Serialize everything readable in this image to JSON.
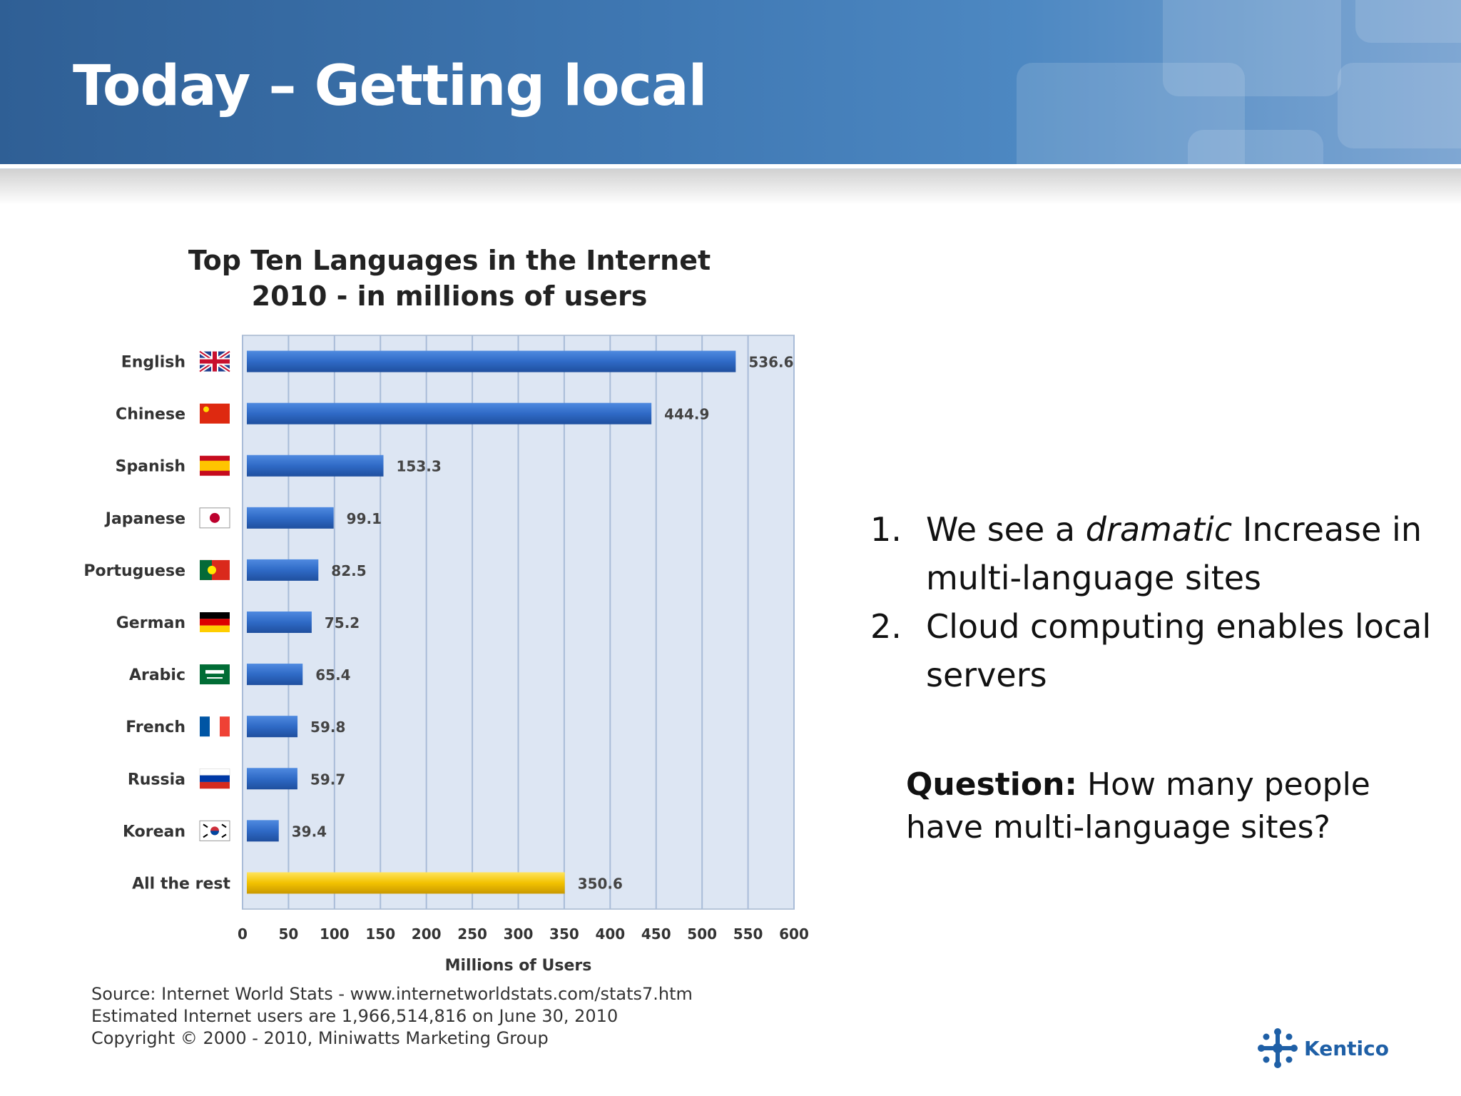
{
  "slide": {
    "title": "Today – Getting local"
  },
  "chart_data": {
    "type": "bar",
    "orientation": "horizontal",
    "title": "Top Ten Languages in the Internet",
    "subtitle": "2010 - in millions of users",
    "xlabel": "Millions of Users",
    "ylabel": "",
    "xlim": [
      0,
      600
    ],
    "xticks": [
      0,
      50,
      100,
      150,
      200,
      250,
      300,
      350,
      400,
      450,
      500,
      550,
      600
    ],
    "grid": true,
    "categories": [
      "English",
      "Chinese",
      "Spanish",
      "Japanese",
      "Portuguese",
      "German",
      "Arabic",
      "French",
      "Russia",
      "Korean",
      "All the rest"
    ],
    "values": [
      536.6,
      444.9,
      153.3,
      99.1,
      82.5,
      75.2,
      65.4,
      59.8,
      59.7,
      39.4,
      350.6
    ],
    "value_labels": [
      "536.6",
      "444.9",
      "153.3",
      "99.1",
      "82.5",
      "75.2",
      "65.4",
      "59.8",
      "59.7",
      "39.4",
      "350.6"
    ],
    "flags": [
      "uk-flag-icon",
      "china-flag-icon",
      "spain-flag-icon",
      "japan-flag-icon",
      "portugal-flag-icon",
      "germany-flag-icon",
      "saudi-arabia-flag-icon",
      "france-flag-icon",
      "russia-flag-icon",
      "korea-flag-icon",
      null
    ],
    "colors": {
      "bar": "#2f6ac6",
      "highlight_bar": "#f2c200",
      "plot_background": "#dde6f3",
      "grid": "#a9bcd8"
    }
  },
  "source": {
    "line1": "Source: Internet World Stats - www.internetworldstats.com/stats7.htm",
    "line2": "Estimated Internet users are 1,966,514,816 on June 30, 2010",
    "line3": "Copyright © 2000 - 2010, Miniwatts Marketing Group"
  },
  "points": [
    {
      "num": "1.",
      "before": "We see a ",
      "em": "dramatic",
      "after": " Increase in multi-language sites"
    },
    {
      "num": "2.",
      "text": "Cloud computing enables local servers"
    }
  ],
  "question": {
    "label": "Question:",
    "text": " How many people have multi-language sites?"
  },
  "logo": {
    "text": "Kentico"
  }
}
